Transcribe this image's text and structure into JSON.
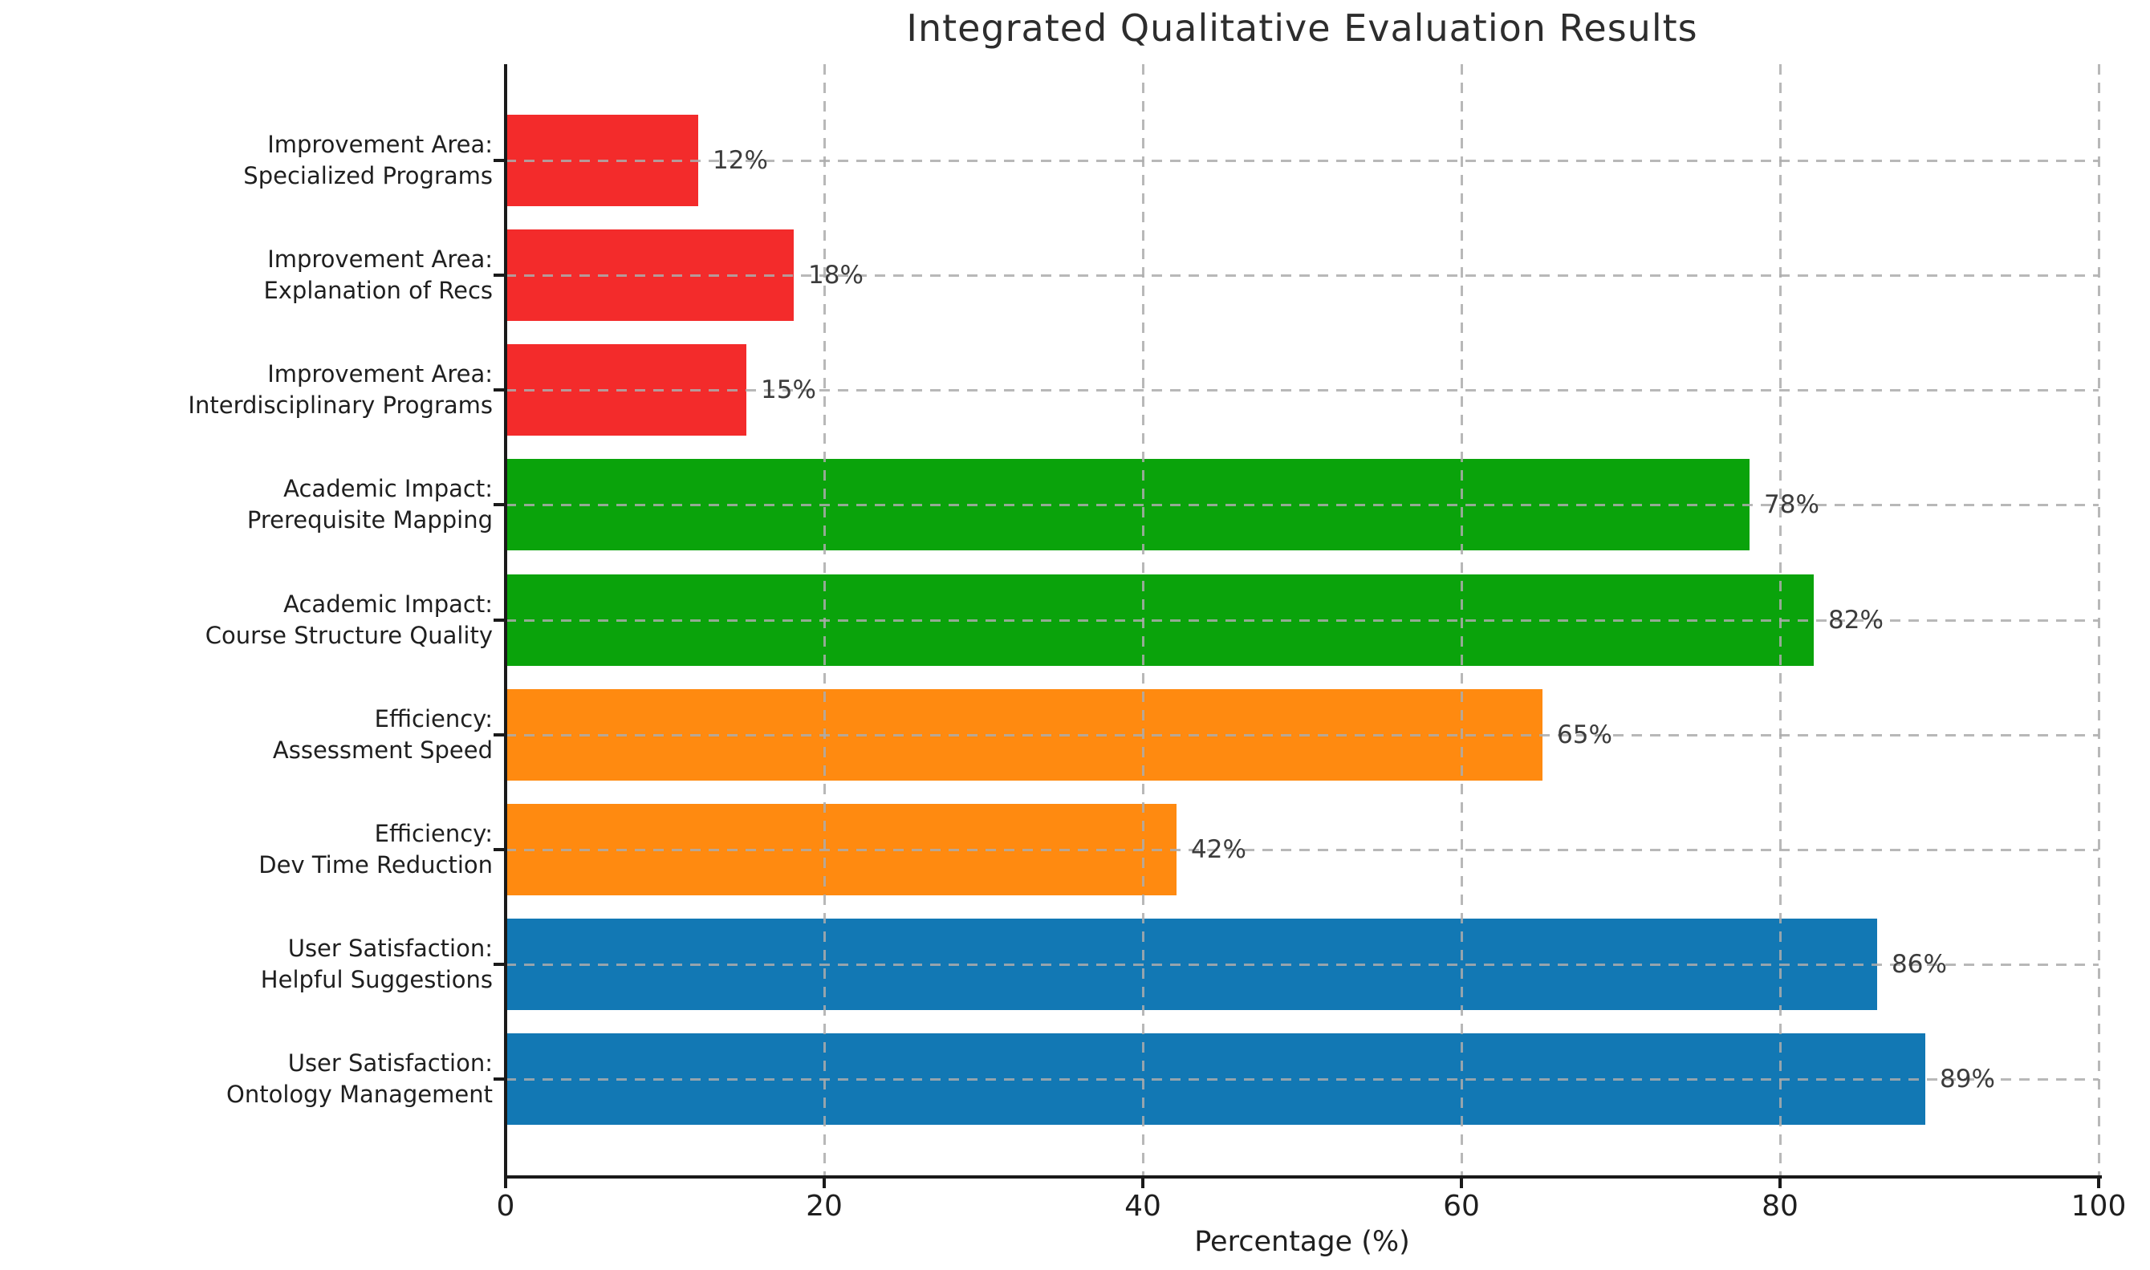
{
  "chart_data": {
    "type": "bar",
    "orientation": "horizontal",
    "title": "Integrated Qualitative Evaluation Results",
    "xlabel": "Percentage (%)",
    "ylabel": "",
    "xlim": [
      0,
      100
    ],
    "xticks": [
      0,
      20,
      40,
      60,
      80,
      100
    ],
    "grid": {
      "style": "dashed",
      "color": "#acacac",
      "vertical": true,
      "horizontal": true,
      "drawn_over_bars": true
    },
    "legend": "none",
    "axis_color": "#1a1a1a",
    "groups": [
      {
        "name": "Improvement Area",
        "color": "#f32b2b"
      },
      {
        "name": "Academic Impact",
        "color": "#0aa30b"
      },
      {
        "name": "Efficiency",
        "color": "#ff8a10"
      },
      {
        "name": "User Satisfaction",
        "color": "#1278b4"
      }
    ],
    "bars": [
      {
        "label": "Improvement Area:\nSpecialized Programs",
        "value": 12,
        "value_label": "12%",
        "group": "Improvement Area",
        "color": "#f32b2b"
      },
      {
        "label": "Improvement Area:\nExplanation of Recs",
        "value": 18,
        "value_label": "18%",
        "group": "Improvement Area",
        "color": "#f32b2b"
      },
      {
        "label": "Improvement Area:\nInterdisciplinary Programs",
        "value": 15,
        "value_label": "15%",
        "group": "Improvement Area",
        "color": "#f32b2b"
      },
      {
        "label": "Academic Impact:\nPrerequisite Mapping",
        "value": 78,
        "value_label": "78%",
        "group": "Academic Impact",
        "color": "#0aa30b"
      },
      {
        "label": "Academic Impact:\nCourse Structure Quality",
        "value": 82,
        "value_label": "82%",
        "group": "Academic Impact",
        "color": "#0aa30b"
      },
      {
        "label": "Efficiency:\nAssessment Speed",
        "value": 65,
        "value_label": "65%",
        "group": "Efficiency",
        "color": "#ff8a10"
      },
      {
        "label": "Efficiency:\nDev Time Reduction",
        "value": 42,
        "value_label": "42%",
        "group": "Efficiency",
        "color": "#ff8a10"
      },
      {
        "label": "User Satisfaction:\nHelpful Suggestions",
        "value": 86,
        "value_label": "86%",
        "group": "User Satisfaction",
        "color": "#1278b4"
      },
      {
        "label": "User Satisfaction:\nOntology Management",
        "value": 89,
        "value_label": "89%",
        "group": "User Satisfaction",
        "color": "#1278b4"
      }
    ]
  }
}
